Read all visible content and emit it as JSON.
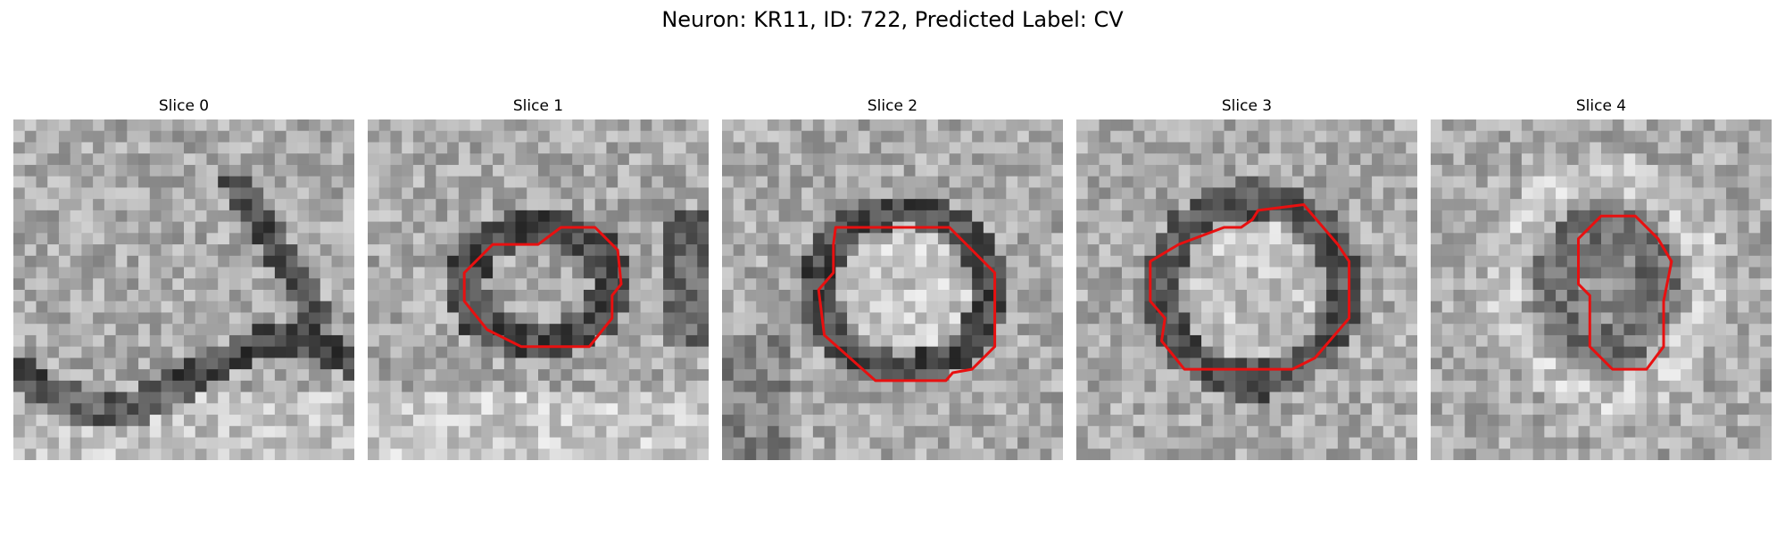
{
  "figure": {
    "title": "Neuron: KR11, ID: 722, Predicted Label: CV"
  },
  "panels": [
    {
      "title": "Slice 0",
      "has_contour": false
    },
    {
      "title": "Slice 1",
      "has_contour": true
    },
    {
      "title": "Slice 2",
      "has_contour": true
    },
    {
      "title": "Slice 3",
      "has_contour": true
    },
    {
      "title": "Slice 4",
      "has_contour": true
    }
  ],
  "colors": {
    "contour": "#e81010",
    "background": "#ffffff"
  },
  "image": {
    "colormap": "grayscale",
    "grid": "30x30 pixels per slice"
  }
}
